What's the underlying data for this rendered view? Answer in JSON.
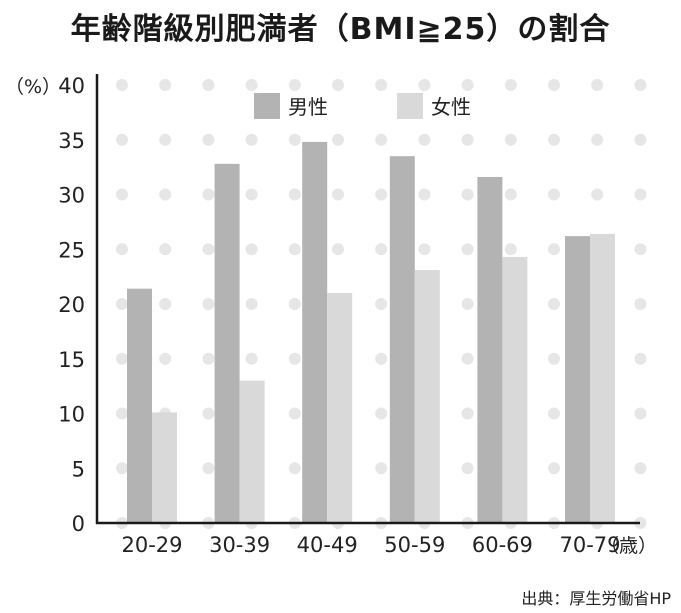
{
  "title": "年齢階級別肥満者（BMI≧25）の割合",
  "source": "出典：厚生労働省HP",
  "chart_data": {
    "type": "bar",
    "title": "年齢階級別肥満者（BMI≧25）の割合",
    "ylabel": "（%）",
    "xlabel": "（歳）",
    "categories": [
      "20-29",
      "30-39",
      "40-49",
      "50-59",
      "60-69",
      "70-79"
    ],
    "series": [
      {
        "name": "男性",
        "values": [
          21.4,
          32.8,
          34.8,
          33.5,
          31.6,
          26.2
        ],
        "color": "#b3b3b3"
      },
      {
        "name": "女性",
        "values": [
          10.1,
          13.0,
          21.0,
          23.1,
          24.3,
          26.4
        ],
        "color": "#d9d9d9"
      }
    ],
    "yticks": [
      0,
      5,
      10,
      15,
      20,
      25,
      30,
      35,
      40
    ],
    "ylim": [
      0,
      40
    ],
    "grid": "dotted",
    "legend_position": "top-center"
  }
}
